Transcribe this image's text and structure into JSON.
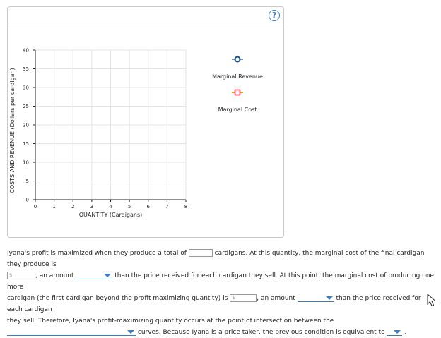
{
  "help_label": "?",
  "chart_data": {
    "type": "line",
    "title": "",
    "xlabel": "QUANTITY (Cardigans)",
    "ylabel": "COSTS AND REVENUE (Dollars per cardigan)",
    "xlim": [
      0,
      8
    ],
    "ylim": [
      0,
      40
    ],
    "x_ticks": [
      "0",
      "1",
      "2",
      "3",
      "4",
      "5",
      "6",
      "7",
      "8"
    ],
    "y_ticks": [
      "0",
      "5",
      "10",
      "15",
      "20",
      "25",
      "30",
      "35",
      "40"
    ],
    "grid": true,
    "series": [
      {
        "name": "Marginal Revenue",
        "marker": "circle",
        "color": "#1f4e79",
        "line_color": "#6b9bd1",
        "points": []
      },
      {
        "name": "Marginal Cost",
        "marker": "square",
        "color": "#f0a018",
        "line_color": "#f0a018",
        "points": []
      }
    ]
  },
  "question": {
    "s1_pre": "Iyana's profit is maximized when they produce a total of",
    "s1_post": "cardigans. At this quantity, the marginal cost of the final cardigan they produce is",
    "currency_placeholder": "$",
    "s2_a": ", an amount",
    "s2_b": "than the price received for each cardigan they sell. At this point, the marginal cost of producing one more",
    "s3_a": "cardigan (the first cardigan beyond the profit maximizing quantity) is",
    "s3_b": ", an amount",
    "s3_c": "than the price received for each cardigan",
    "s4": "they sell. Therefore, Iyana's profit-maximizing quantity occurs at the point of intersection between the",
    "s5_a": "curves. Because Iyana is a price taker, the previous condition is equivalent to",
    "s5_end": "."
  }
}
